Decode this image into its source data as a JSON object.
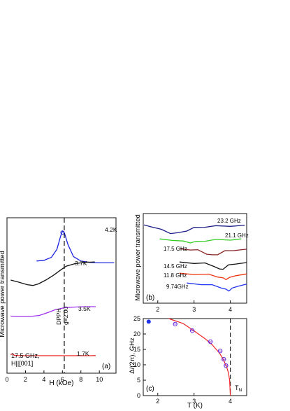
{
  "chart_data": [
    {
      "id": "a",
      "type": "line",
      "panel_label": "(a)",
      "xlabel": "H (kOe)",
      "ylabel": "Microwave power transmitted",
      "xlim": [
        0,
        11.8
      ],
      "xticks": [
        "0",
        "2",
        "4",
        "6",
        "8",
        "10"
      ],
      "annotations": {
        "frequency": "17.5 GHz,",
        "orientation": "H||[001]",
        "marker": "DPPH",
        "gfactor": "g=2.00"
      },
      "marker_field": 6.2,
      "series": [
        {
          "name": "4.2K",
          "color": "#1a22dd",
          "points": [
            [
              3.2,
              0.1
            ],
            [
              4.0,
              0.12
            ],
            [
              4.8,
              0.2
            ],
            [
              5.4,
              0.42
            ],
            [
              5.8,
              0.78
            ],
            [
              6.0,
              0.92
            ],
            [
              6.2,
              0.88
            ],
            [
              6.6,
              0.55
            ],
            [
              7.2,
              0.22
            ],
            [
              8.0,
              0.1
            ],
            [
              9.0,
              0.06
            ],
            [
              10,
              0.05
            ],
            [
              11.6,
              0.05
            ]
          ]
        },
        {
          "name": "3.7K",
          "color": "#111111",
          "points": [
            [
              0.4,
              0.0
            ],
            [
              1.2,
              -0.05
            ],
            [
              2.2,
              -0.12
            ],
            [
              2.8,
              -0.14
            ],
            [
              3.4,
              -0.1
            ],
            [
              4.2,
              0.0
            ],
            [
              5.0,
              0.12
            ],
            [
              5.8,
              0.26
            ],
            [
              6.4,
              0.36
            ],
            [
              7.4,
              0.43
            ],
            [
              8.5,
              0.46
            ],
            [
              9.5,
              0.47
            ]
          ]
        },
        {
          "name": "3.5K",
          "color": "#a030ee",
          "points": [
            [
              0.4,
              -0.05
            ],
            [
              1.2,
              -0.06
            ],
            [
              2.5,
              -0.06
            ],
            [
              3.5,
              -0.03
            ],
            [
              4.4,
              0.05
            ],
            [
              5.2,
              0.13
            ],
            [
              6.2,
              0.19
            ],
            [
              7.4,
              0.21
            ],
            [
              8.5,
              0.22
            ],
            [
              9.6,
              0.22
            ]
          ]
        },
        {
          "name": "1.7K",
          "color": "#ee2222",
          "points": [
            [
              0.4,
              0.06
            ],
            [
              0.6,
              0.12
            ],
            [
              0.8,
              0.02
            ],
            [
              1.5,
              0.0
            ],
            [
              3.0,
              0.0
            ],
            [
              5.0,
              0.0
            ],
            [
              7.0,
              0.0
            ],
            [
              9.0,
              0.0
            ],
            [
              9.6,
              0.01
            ]
          ]
        }
      ]
    },
    {
      "id": "b",
      "type": "line",
      "panel_label": "(b)",
      "ylabel": "Microwave power transmitted",
      "xlim": [
        1.6,
        4.45
      ],
      "xticks": [
        "2",
        "3",
        "4"
      ],
      "series": [
        {
          "name": "23.2 GHz",
          "color": "#1c1c88",
          "points": [
            [
              1.62,
              0.0
            ],
            [
              1.8,
              0.05
            ],
            [
              2.1,
              0.35
            ],
            [
              2.35,
              0.6
            ],
            [
              2.55,
              0.62
            ],
            [
              2.8,
              0.4
            ],
            [
              3.0,
              0.2
            ],
            [
              3.3,
              0.1
            ],
            [
              3.6,
              0.06
            ],
            [
              4.0,
              0.03
            ],
            [
              4.4,
              0.02
            ]
          ]
        },
        {
          "name": "21.1 GHz",
          "color": "#33cc22",
          "points": [
            [
              2.05,
              0.0
            ],
            [
              2.4,
              0.05
            ],
            [
              2.7,
              0.25
            ],
            [
              2.9,
              0.35
            ],
            [
              3.05,
              0.3
            ],
            [
              3.3,
              0.15
            ],
            [
              3.6,
              0.06
            ],
            [
              4.0,
              0.02
            ],
            [
              4.3,
              0.0
            ]
          ]
        },
        {
          "name": "17.5 GHz",
          "color": "#882222",
          "points": [
            [
              2.6,
              0.0
            ],
            [
              2.9,
              0.02
            ],
            [
              3.1,
              0.1
            ],
            [
              3.35,
              0.45
            ],
            [
              3.5,
              0.62
            ],
            [
              3.65,
              0.5
            ],
            [
              3.85,
              0.2
            ],
            [
              4.1,
              0.08
            ],
            [
              4.45,
              0.05
            ]
          ]
        },
        {
          "name": "14.5 GHz",
          "color": "#111111",
          "points": [
            [
              2.6,
              0.0
            ],
            [
              3.0,
              0.03
            ],
            [
              3.3,
              0.08
            ],
            [
              3.55,
              0.3
            ],
            [
              3.7,
              0.62
            ],
            [
              3.8,
              0.55
            ],
            [
              3.95,
              0.25
            ],
            [
              4.15,
              0.08
            ],
            [
              4.45,
              0.05
            ]
          ]
        },
        {
          "name": "11.8 GHz",
          "color": "#ee3311",
          "points": [
            [
              2.6,
              0.0
            ],
            [
              3.0,
              0.02
            ],
            [
              3.4,
              0.1
            ],
            [
              3.65,
              0.3
            ],
            [
              3.8,
              0.5
            ],
            [
              3.88,
              0.58
            ],
            [
              3.98,
              0.45
            ],
            [
              4.15,
              0.15
            ],
            [
              4.45,
              0.08
            ]
          ]
        },
        {
          "name": "9.74GHz",
          "color": "#2233ee",
          "points": [
            [
              2.8,
              0.0
            ],
            [
              3.2,
              0.05
            ],
            [
              3.5,
              0.15
            ],
            [
              3.75,
              0.35
            ],
            [
              3.88,
              0.55
            ],
            [
              3.96,
              0.62
            ],
            [
              4.05,
              0.45
            ],
            [
              4.2,
              0.2
            ],
            [
              4.45,
              0.1
            ]
          ]
        }
      ]
    },
    {
      "id": "c",
      "type": "scatter",
      "panel_label": "(c)",
      "xlabel": "T (K)",
      "ylabel": "Δ/(2π), GHz",
      "xlim": [
        1.6,
        4.45
      ],
      "ylim": [
        0,
        25
      ],
      "xticks": [
        2,
        3,
        4
      ],
      "yticks": [
        0,
        5,
        10,
        15,
        20,
        25
      ],
      "vline_label": "T",
      "vline_sub": "N",
      "vline_x": 4.0,
      "filled_point": {
        "x": 1.75,
        "y": 24.0,
        "color": "#2233ee"
      },
      "points": [
        {
          "x": 2.48,
          "y": 23.2
        },
        {
          "x": 2.95,
          "y": 21.1
        },
        {
          "x": 3.45,
          "y": 17.5
        },
        {
          "x": 3.72,
          "y": 14.5
        },
        {
          "x": 3.82,
          "y": 11.8
        },
        {
          "x": 3.88,
          "y": 9.74
        }
      ],
      "fit": {
        "color": "#ee2222",
        "points": [
          [
            2.3,
            26.0
          ],
          [
            2.7,
            23.4
          ],
          [
            3.0,
            21.0
          ],
          [
            3.3,
            18.5
          ],
          [
            3.5,
            16.5
          ],
          [
            3.7,
            13.8
          ],
          [
            3.8,
            11.9
          ],
          [
            3.9,
            9.3
          ],
          [
            3.95,
            7.3
          ],
          [
            3.98,
            5.0
          ],
          [
            4.0,
            0.0
          ]
        ]
      }
    }
  ]
}
